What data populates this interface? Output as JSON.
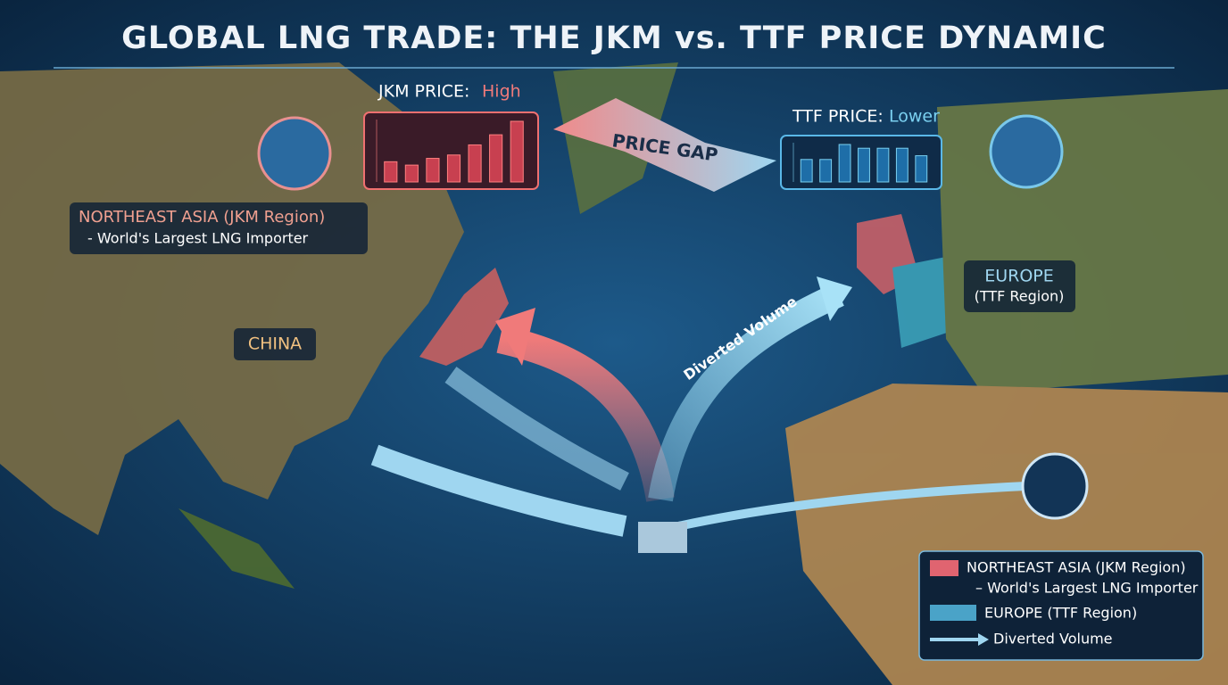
{
  "title": "GLOBAL LNG TRADE: THE JKM vs. TTF PRICE DYNAMIC",
  "jkm": {
    "label": "JKM PRICE:",
    "level": "High",
    "bars": [
      3,
      2.5,
      3.5,
      4,
      5.5,
      7,
      9
    ]
  },
  "ttf": {
    "label": "TTF PRICE:",
    "level": "Lower",
    "bars": [
      3,
      3,
      5,
      4.5,
      4.5,
      4.5,
      3.5
    ]
  },
  "price_gap": "PRICE GAP",
  "asia": {
    "name": "NORTHEAST ASIA (JKM Region)",
    "note": "- World's Largest LNG Importer"
  },
  "china": "CHINA",
  "europe": {
    "name": "EUROPE",
    "region": "(TTF Region)"
  },
  "diverted": "Diverted Volume",
  "legend": {
    "items": [
      {
        "label": "NORTHEAST ASIA (JKM Region)",
        "sub": "– World's Largest LNG Importer",
        "color": "#e06470"
      },
      {
        "label": "EUROPE (TTF Region)",
        "color": "#4aa3c8"
      },
      {
        "label": "Diverted Volume"
      }
    ]
  }
}
